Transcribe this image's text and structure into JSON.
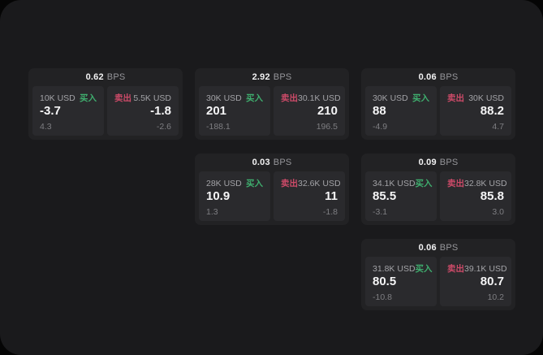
{
  "labels": {
    "bps_unit": "BPS",
    "buy": "买入",
    "sell": "卖出"
  },
  "colors": {
    "buy_green": "#3fae6e",
    "sell_red": "#cc4a68",
    "window_bg": "#1a1a1c",
    "card_bg": "#222224",
    "panel_bg": "#2a2a2d"
  },
  "cards": [
    {
      "bps": "0.62",
      "col": 1,
      "row": 1,
      "buy": {
        "amount": "10K USD",
        "value": "-3.7",
        "sub": "4.3"
      },
      "sell": {
        "amount": "5.5K USD",
        "value": "-1.8",
        "sub": "-2.6"
      }
    },
    {
      "bps": "2.92",
      "col": 2,
      "row": 1,
      "buy": {
        "amount": "30K USD",
        "value": "201",
        "sub": "-188.1"
      },
      "sell": {
        "amount": "30.1K USD",
        "value": "210",
        "sub": "196.5"
      }
    },
    {
      "bps": "0.06",
      "col": 3,
      "row": 1,
      "buy": {
        "amount": "30K USD",
        "value": "88",
        "sub": "-4.9"
      },
      "sell": {
        "amount": "30K USD",
        "value": "88.2",
        "sub": "4.7"
      }
    },
    {
      "bps": "0.03",
      "col": 2,
      "row": 2,
      "buy": {
        "amount": "28K USD",
        "value": "10.9",
        "sub": "1.3"
      },
      "sell": {
        "amount": "32.6K USD",
        "value": "11",
        "sub": "-1.8"
      }
    },
    {
      "bps": "0.09",
      "col": 3,
      "row": 2,
      "buy": {
        "amount": "34.1K USD",
        "value": "85.5",
        "sub": "-3.1"
      },
      "sell": {
        "amount": "32.8K USD",
        "value": "85.8",
        "sub": "3.0"
      }
    },
    {
      "bps": "0.06",
      "col": 3,
      "row": 3,
      "buy": {
        "amount": "31.8K USD",
        "value": "80.5",
        "sub": "-10.8"
      },
      "sell": {
        "amount": "39.1K USD",
        "value": "80.7",
        "sub": "10.2"
      }
    }
  ]
}
